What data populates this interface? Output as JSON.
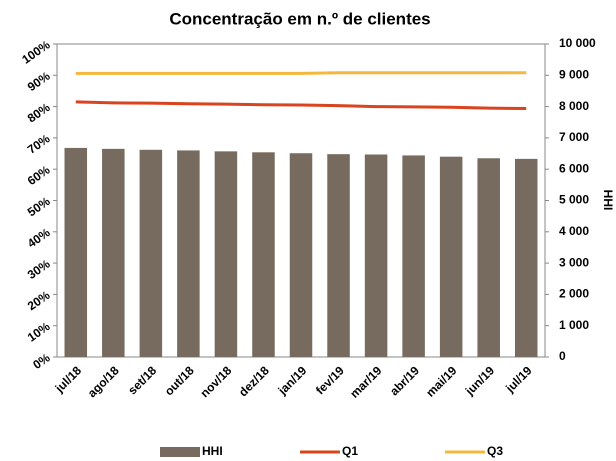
{
  "chart_data": {
    "type": "bar_line",
    "title": "Concentração em n.º de clientes",
    "y2label": "HHI",
    "categories": [
      "jul/18",
      "ago/18",
      "set/18",
      "out/18",
      "nov/18",
      "dez/18",
      "jan/19",
      "fev/19",
      "mar/19",
      "abr/19",
      "mai/19",
      "jun/19",
      "jul/19"
    ],
    "series": [
      {
        "name": "HHI",
        "type": "bar",
        "axis": "y2",
        "color": "#776b5f",
        "values": [
          6680,
          6650,
          6620,
          6600,
          6570,
          6540,
          6510,
          6480,
          6470,
          6440,
          6400,
          6350,
          6330
        ]
      },
      {
        "name": "Q1",
        "type": "line",
        "axis": "y",
        "color": "#d9441e",
        "values": [
          81.5,
          81.2,
          81.1,
          80.9,
          80.8,
          80.6,
          80.5,
          80.3,
          80.0,
          79.9,
          79.8,
          79.5,
          79.4
        ]
      },
      {
        "name": "Q3",
        "type": "line",
        "axis": "y",
        "color": "#f5b83d",
        "values": [
          90.6,
          90.6,
          90.6,
          90.6,
          90.6,
          90.6,
          90.6,
          90.8,
          90.8,
          90.8,
          90.8,
          90.8,
          90.8
        ]
      }
    ],
    "ylim": [
      0,
      100
    ],
    "yticks": [
      {
        "value": 0,
        "label": "0%"
      },
      {
        "value": 10,
        "label": "10%"
      },
      {
        "value": 20,
        "label": "20%"
      },
      {
        "value": 30,
        "label": "30%"
      },
      {
        "value": 40,
        "label": "40%"
      },
      {
        "value": 50,
        "label": "50%"
      },
      {
        "value": 60,
        "label": "60%"
      },
      {
        "value": 70,
        "label": "70%"
      },
      {
        "value": 80,
        "label": "80%"
      },
      {
        "value": 90,
        "label": "90%"
      },
      {
        "value": 100,
        "label": "100%"
      }
    ],
    "y2lim": [
      0,
      10000
    ],
    "y2ticks": [
      0,
      {
        "value": 1000,
        "label": "1 000"
      },
      {
        "value": 2000,
        "label": "2 000"
      },
      {
        "value": 3000,
        "label": "3 000"
      },
      {
        "value": 4000,
        "label": "4 000"
      },
      {
        "value": 5000,
        "label": "5 000"
      },
      {
        "value": 6000,
        "label": "6 000"
      },
      {
        "value": 7000,
        "label": "7 000"
      },
      {
        "value": 8000,
        "label": "8 000"
      },
      {
        "value": 9000,
        "label": "9 000"
      },
      {
        "value": 10000,
        "label": "10 000"
      }
    ],
    "legend": "bottom"
  }
}
